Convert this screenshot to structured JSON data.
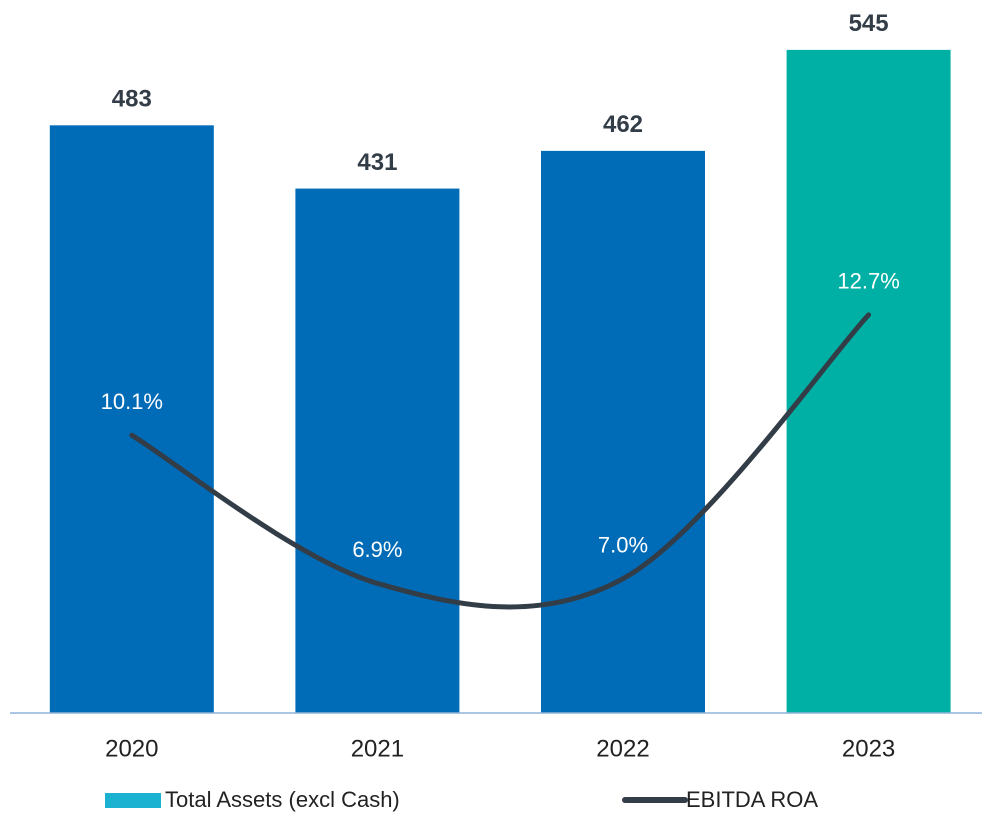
{
  "chart_data": {
    "type": "bar_line",
    "categories": [
      "2020",
      "2021",
      "2022",
      "2023"
    ],
    "series": [
      {
        "name": "Total Assets (excl Cash)",
        "type": "bar",
        "color": "#1ab2d0",
        "colors": [
          "#006bb6",
          "#006bb6",
          "#006bb6",
          "#00b0a5"
        ],
        "values": [
          483,
          431,
          462,
          545
        ]
      },
      {
        "name": "EBITDA ROA",
        "type": "line",
        "axis": "y2",
        "color": "#333d47",
        "values": [
          10.1,
          6.9,
          7.0,
          12.7
        ],
        "value_labels": [
          "10.1%",
          "6.9%",
          "7.0%",
          "12.7%"
        ]
      }
    ],
    "ylim": [
      0,
      586
    ],
    "y2lim": [
      4.1,
      19.5
    ],
    "legend": "bottom"
  }
}
